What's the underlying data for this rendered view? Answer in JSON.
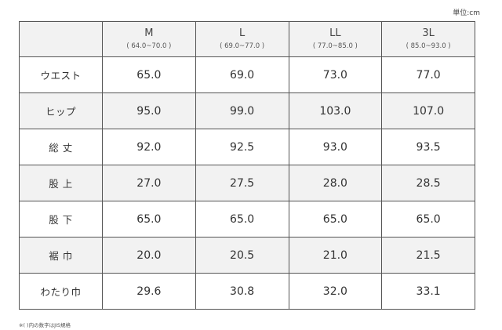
{
  "unit_label": "単位:cm",
  "columns": [
    {
      "size": "M",
      "range": "( 64.0~70.0 )"
    },
    {
      "size": "L",
      "range": "( 69.0~77.0 )"
    },
    {
      "size": "LL",
      "range": "( 77.0~85.0 )"
    },
    {
      "size": "3L",
      "range": "( 85.0~93.0 )"
    }
  ],
  "rows": [
    {
      "label": "ウエスト",
      "values": [
        "65.0",
        "69.0",
        "73.0",
        "77.0"
      ]
    },
    {
      "label": "ヒップ",
      "values": [
        "95.0",
        "99.0",
        "103.0",
        "107.0"
      ]
    },
    {
      "label": "総 丈",
      "values": [
        "92.0",
        "92.5",
        "93.0",
        "93.5"
      ]
    },
    {
      "label": "股 上",
      "values": [
        "27.0",
        "27.5",
        "28.0",
        "28.5"
      ]
    },
    {
      "label": "股 下",
      "values": [
        "65.0",
        "65.0",
        "65.0",
        "65.0"
      ]
    },
    {
      "label": "裾 巾",
      "values": [
        "20.0",
        "20.5",
        "21.0",
        "21.5"
      ]
    },
    {
      "label": "わたり巾",
      "values": [
        "29.6",
        "30.8",
        "32.0",
        "33.1"
      ]
    }
  ],
  "footnote": "※( )内の数字はJIS規格"
}
